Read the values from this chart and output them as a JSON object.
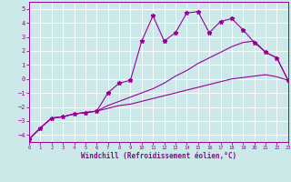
{
  "xlabel": "Windchill (Refroidissement éolien,°C)",
  "ylabel": "",
  "bg_color": "#cce8e8",
  "line_color": "#990099",
  "grid_color": "#ffffff",
  "xmin": 0,
  "xmax": 23,
  "ymin": -4.5,
  "ymax": 5.5,
  "yticks": [
    -4,
    -3,
    -2,
    -1,
    0,
    1,
    2,
    3,
    4,
    5
  ],
  "xticks": [
    0,
    1,
    2,
    3,
    4,
    5,
    6,
    7,
    8,
    9,
    10,
    11,
    12,
    13,
    14,
    15,
    16,
    17,
    18,
    19,
    20,
    21,
    22,
    23
  ],
  "line1_x": [
    0,
    1,
    2,
    3,
    4,
    5,
    6,
    7,
    8,
    9,
    10,
    11,
    12,
    13,
    14,
    15,
    16,
    17,
    18,
    19,
    20,
    21,
    22,
    23
  ],
  "line1_y": [
    -4.3,
    -3.5,
    -2.8,
    -2.7,
    -2.5,
    -2.4,
    -2.3,
    -2.1,
    -1.9,
    -1.8,
    -1.6,
    -1.4,
    -1.2,
    -1.0,
    -0.8,
    -0.6,
    -0.4,
    -0.2,
    0.0,
    0.1,
    0.2,
    0.3,
    0.15,
    -0.1
  ],
  "line2_x": [
    0,
    1,
    2,
    3,
    4,
    5,
    6,
    7,
    8,
    9,
    10,
    11,
    12,
    13,
    14,
    15,
    16,
    17,
    18,
    19,
    20,
    21,
    22,
    23
  ],
  "line2_y": [
    -4.3,
    -3.5,
    -2.8,
    -2.7,
    -2.5,
    -2.4,
    -2.3,
    -1.9,
    -1.6,
    -1.3,
    -1.0,
    -0.7,
    -0.3,
    0.2,
    0.6,
    1.1,
    1.5,
    1.9,
    2.3,
    2.6,
    2.7,
    1.9,
    1.5,
    -0.1
  ],
  "line3_x": [
    0,
    1,
    2,
    3,
    4,
    5,
    6,
    7,
    8,
    9,
    10,
    11,
    12,
    13,
    14,
    15,
    16,
    17,
    18,
    19,
    20,
    21,
    22,
    23
  ],
  "line3_y": [
    -4.3,
    -3.5,
    -2.8,
    -2.7,
    -2.5,
    -2.4,
    -2.3,
    -1.0,
    -0.3,
    -0.1,
    2.7,
    4.5,
    2.7,
    3.3,
    4.7,
    4.8,
    3.3,
    4.1,
    4.3,
    3.5,
    2.6,
    1.9,
    1.5,
    -0.1
  ],
  "tick_fontsize": 5,
  "xlabel_fontsize": 5.5
}
